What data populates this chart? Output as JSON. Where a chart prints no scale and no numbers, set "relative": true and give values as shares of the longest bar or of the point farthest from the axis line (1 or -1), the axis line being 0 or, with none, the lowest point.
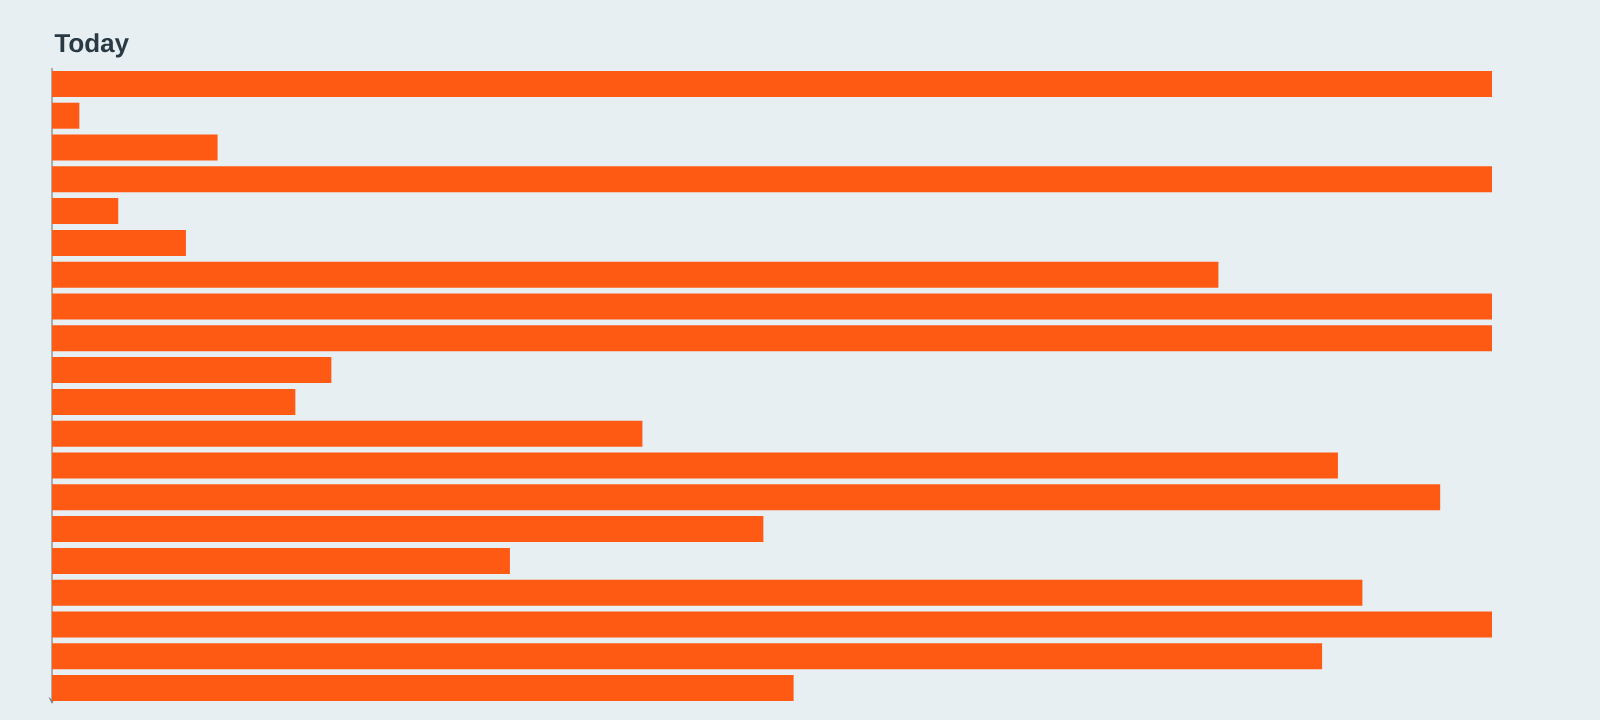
{
  "chart_data": {
    "type": "bar",
    "title": "Today",
    "orientation": "horizontal",
    "relative": true,
    "color": "#ff5a14",
    "categories": [
      null,
      null,
      null,
      null,
      null,
      null,
      null,
      null,
      null,
      null,
      null,
      null,
      null,
      null,
      null,
      null,
      null,
      null,
      null,
      null
    ],
    "values": [
      1,
      0.019,
      0.115,
      1,
      0.046,
      0.093,
      0.81,
      1,
      1,
      0.194,
      0.169,
      0.41,
      0.893,
      0.964,
      0.494,
      0.318,
      0.91,
      1,
      0.882,
      0.515
    ]
  }
}
